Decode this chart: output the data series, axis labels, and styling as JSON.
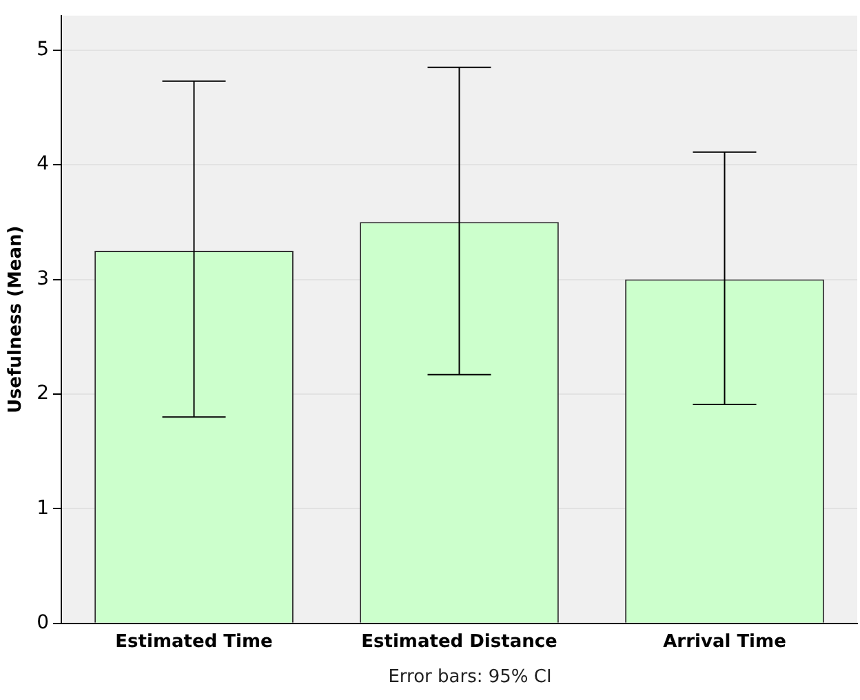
{
  "chart_data": {
    "type": "bar",
    "ylabel": "Usefulness (Mean)",
    "categories": [
      "Estimated Time",
      "Estimated Distance",
      "Arrival Time"
    ],
    "values": [
      3.25,
      3.5,
      3.0
    ],
    "color": "#ccffcc",
    "errors": [
      [
        1.8,
        4.73
      ],
      [
        2.17,
        4.85
      ],
      [
        1.91,
        4.11
      ]
    ],
    "ylim": [
      0,
      5.3
    ],
    "yticks": [
      0,
      1,
      2,
      3,
      4,
      5
    ],
    "grid": "y",
    "legend": false,
    "annotations": [
      "Error bars: 95% CI"
    ]
  }
}
